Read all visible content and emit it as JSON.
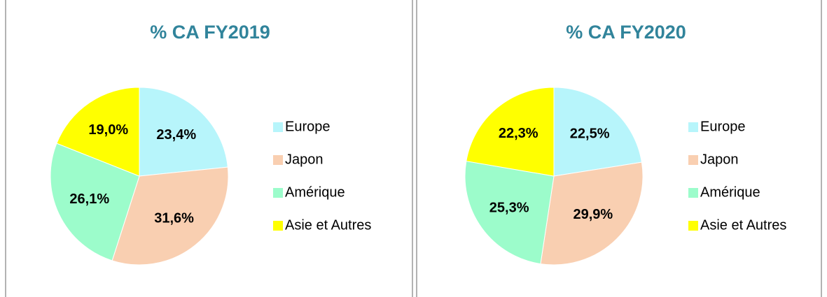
{
  "chart_data": [
    {
      "type": "pie",
      "title": "% CA FY2019",
      "categories": [
        "Europe",
        "Japon",
        "Amérique",
        "Asie et Autres"
      ],
      "values": [
        23.4,
        31.6,
        26.1,
        19.0
      ],
      "value_labels": [
        "23,4%",
        "31,6%",
        "26,1%",
        "19,0%"
      ],
      "colors": [
        "#b7f5fb",
        "#f9cfb1",
        "#9cfccb",
        "#ffff00"
      ]
    },
    {
      "type": "pie",
      "title": "% CA FY2020",
      "categories": [
        "Europe",
        "Japon",
        "Amérique",
        "Asie et Autres"
      ],
      "values": [
        22.5,
        29.9,
        25.3,
        22.3
      ],
      "value_labels": [
        "22,5%",
        "29,9%",
        "25,3%",
        "22,3%"
      ],
      "colors": [
        "#b7f5fb",
        "#f9cfb1",
        "#9cfccb",
        "#ffff00"
      ]
    }
  ]
}
